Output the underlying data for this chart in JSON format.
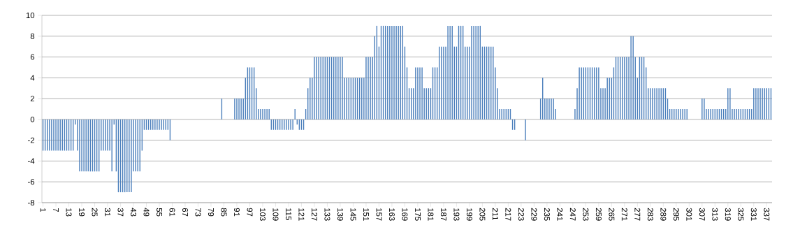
{
  "chart_data": {
    "type": "bar",
    "color": "#4a7ebb",
    "grid": "y",
    "ylim": [
      -8,
      10
    ],
    "yticks": [
      -8,
      -6,
      -4,
      -2,
      0,
      2,
      4,
      6,
      8,
      10
    ],
    "categories": [
      "1",
      null,
      null,
      null,
      null,
      null,
      "7",
      null,
      null,
      null,
      null,
      null,
      "13",
      null,
      null,
      null,
      null,
      null,
      "19",
      null,
      null,
      null,
      null,
      null,
      "25",
      null,
      null,
      null,
      null,
      null,
      "31",
      null,
      null,
      null,
      null,
      null,
      "37",
      null,
      null,
      null,
      null,
      null,
      "43",
      null,
      null,
      null,
      null,
      null,
      "49",
      null,
      null,
      null,
      null,
      null,
      "55",
      null,
      null,
      null,
      null,
      null,
      "61",
      null,
      null,
      null,
      null,
      null,
      "67",
      null,
      null,
      null,
      null,
      null,
      "73",
      null,
      null,
      null,
      null,
      null,
      "79",
      null,
      null,
      null,
      null,
      null,
      "85",
      null,
      null,
      null,
      null,
      null,
      "91",
      null,
      null,
      null,
      null,
      null,
      "97",
      null,
      null,
      null,
      null,
      null,
      "103",
      null,
      null,
      null,
      null,
      null,
      "109",
      null,
      null,
      null,
      null,
      null,
      "115",
      null,
      null,
      null,
      null,
      null,
      "121",
      null,
      null,
      null,
      null,
      null,
      "127",
      null,
      null,
      null,
      null,
      null,
      "133",
      null,
      null,
      null,
      null,
      null,
      "139",
      null,
      null,
      null,
      null,
      null,
      "145",
      null,
      null,
      null,
      null,
      null,
      "151",
      null,
      null,
      null,
      null,
      null,
      "157",
      null,
      null,
      null,
      null,
      null,
      "163",
      null,
      null,
      null,
      null,
      null,
      "169",
      null,
      null,
      null,
      null,
      null,
      "175",
      null,
      null,
      null,
      null,
      null,
      "181",
      null,
      null,
      null,
      null,
      null,
      "187",
      null,
      null,
      null,
      null,
      null,
      "193",
      null,
      null,
      null,
      null,
      null,
      "199",
      null,
      null,
      null,
      null,
      null,
      "205",
      null,
      null,
      null,
      null,
      null,
      "211",
      null,
      null,
      null,
      null,
      null,
      "217",
      null,
      null,
      null,
      null,
      null,
      "223",
      null,
      null,
      null,
      null,
      null,
      "229",
      null,
      null,
      null,
      null,
      null,
      "235",
      null,
      null,
      null,
      null,
      null,
      "241",
      null,
      null,
      null,
      null,
      null,
      "247",
      null,
      null,
      null,
      null,
      null,
      "253",
      null,
      null,
      null,
      null,
      null,
      "259",
      null,
      null,
      null,
      null,
      null,
      "265",
      null,
      null,
      null,
      null,
      null,
      "271",
      null,
      null,
      null,
      null,
      null,
      "277",
      null,
      null,
      null,
      null,
      null,
      "283",
      null,
      null,
      null,
      null,
      null,
      "289",
      null,
      null,
      null,
      null,
      null,
      "295",
      null,
      null,
      null,
      null,
      null,
      "301",
      null,
      null,
      null,
      null,
      null,
      "307",
      null,
      null,
      null,
      null,
      null,
      "313",
      null,
      null,
      null,
      null,
      null,
      "319",
      null,
      null,
      null,
      null,
      null,
      "325",
      null,
      null,
      null,
      null,
      null,
      "331",
      null,
      null,
      null,
      null,
      null,
      "337",
      null,
      null
    ],
    "values": [
      -3,
      -3,
      -3,
      -3,
      -3,
      -3,
      -3,
      -3,
      -3,
      -3,
      -3,
      -3,
      -3,
      -3,
      -3,
      -0.5,
      -3,
      -5,
      -5,
      -5,
      -5,
      -5,
      -5,
      -5,
      -5,
      -5,
      -5,
      -3,
      -3,
      -3,
      -3,
      -3,
      -5,
      -0.5,
      -5,
      -7,
      -7,
      -7,
      -7,
      -7,
      -7,
      -7,
      -5,
      -5,
      -5,
      -5,
      -3,
      -1,
      -1,
      -1,
      -1,
      -1,
      -1,
      -1,
      -1,
      -1,
      -1,
      -1,
      -1,
      -2,
      0,
      0,
      0,
      0,
      0,
      0,
      0,
      0,
      0,
      0,
      0,
      0,
      0,
      0,
      0,
      0,
      0,
      0,
      0,
      0,
      0,
      0,
      0,
      2,
      0,
      0,
      0,
      0,
      0,
      2,
      2,
      2,
      2,
      2,
      4,
      5,
      5,
      5,
      5,
      3,
      1,
      1,
      1,
      1,
      1,
      1,
      -1,
      -1,
      -1,
      -1,
      -1,
      -1,
      -1,
      -1,
      -1,
      -1,
      -1,
      1,
      -0.5,
      -1,
      -1,
      -1,
      1,
      3,
      4,
      4,
      6,
      6,
      6,
      6,
      6,
      6,
      6,
      6,
      6,
      6,
      6,
      6,
      6,
      6,
      4,
      4,
      4,
      4,
      4,
      4,
      4,
      4,
      4,
      4,
      6,
      6,
      6,
      6,
      8,
      9,
      7,
      9,
      9,
      9,
      9,
      9,
      9,
      9,
      9,
      9,
      9,
      9,
      7,
      5,
      3,
      3,
      3,
      5,
      5,
      5,
      5,
      3,
      3,
      3,
      3,
      5,
      5,
      5,
      7,
      7,
      7,
      7,
      9,
      9,
      9,
      7,
      7,
      9,
      9,
      9,
      7,
      7,
      7,
      9,
      9,
      9,
      9,
      9,
      7,
      7,
      7,
      7,
      7,
      7,
      5,
      3,
      1,
      1,
      1,
      1,
      1,
      1,
      -1,
      -1,
      0,
      0,
      0,
      0,
      -2,
      0,
      0,
      0,
      0,
      0,
      0,
      2,
      4,
      2,
      2,
      2,
      2,
      2,
      1,
      0,
      0,
      0,
      0,
      0,
      0,
      0,
      0,
      1,
      3,
      5,
      5,
      5,
      5,
      5,
      5,
      5,
      5,
      5,
      5,
      3,
      3,
      3,
      4,
      4,
      4,
      5,
      6,
      6,
      6,
      6,
      6,
      6,
      6,
      8,
      8,
      6,
      4,
      6,
      6,
      6,
      5,
      3,
      3,
      3,
      3,
      3,
      3,
      3,
      3,
      3,
      2,
      1,
      1,
      1,
      1,
      1,
      1,
      1,
      1,
      1,
      0,
      0,
      0,
      0,
      0,
      0,
      2,
      2,
      1,
      1,
      1,
      1,
      1,
      1,
      1,
      1,
      1,
      1,
      3,
      3,
      1,
      1,
      1,
      1,
      1,
      1,
      1,
      1,
      1,
      1,
      3,
      3,
      3,
      3,
      3,
      3,
      3,
      3,
      3
    ]
  }
}
